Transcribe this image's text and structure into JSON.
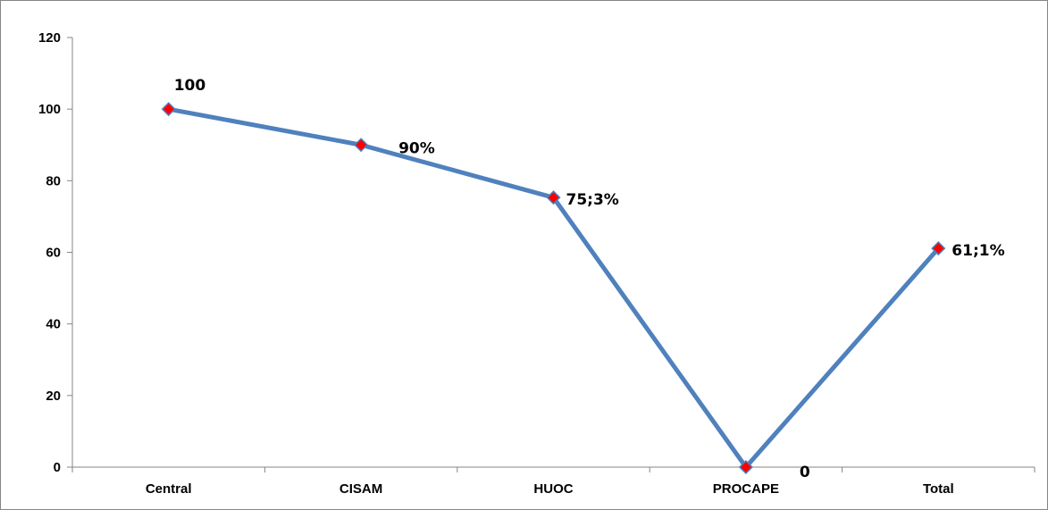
{
  "chart_data": {
    "type": "line",
    "title": "",
    "xlabel": "",
    "ylabel": "",
    "categories": [
      "Central",
      "CISAM",
      "HUOC",
      "PROCAPE",
      "Total"
    ],
    "series": [
      {
        "values": [
          100,
          90,
          75.3,
          0,
          61.1
        ],
        "data_labels": [
          "100",
          "90%",
          "75;3%",
          "0",
          "61;1%"
        ]
      }
    ],
    "y_ticks": [
      "0",
      "20",
      "40",
      "60",
      "80",
      "100",
      "120"
    ],
    "ylim": [
      0,
      120
    ],
    "grid": false,
    "legend": "none",
    "line_color": "#4F81BD",
    "marker_color": "#FF0000",
    "marker_shape": "diamond"
  }
}
